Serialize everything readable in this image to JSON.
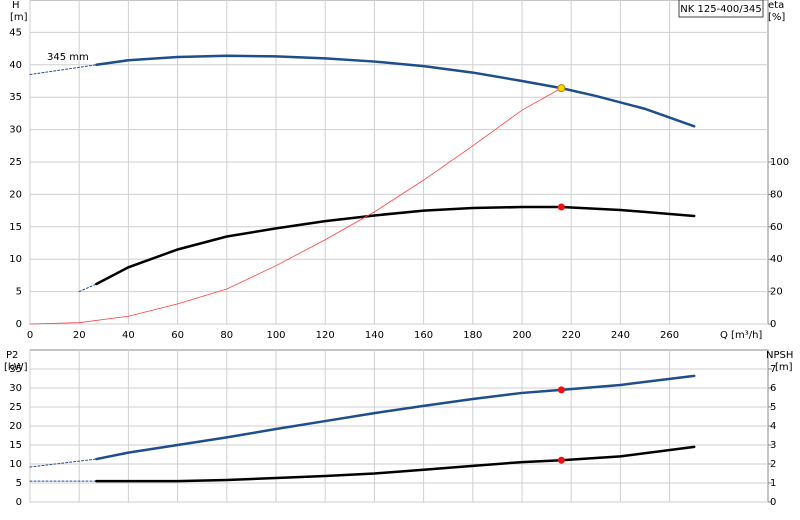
{
  "chart_data": [
    {
      "type": "line",
      "title": "NK 125-400/345",
      "ylabel": "H",
      "yunit": "[m]",
      "y2label": "eta",
      "y2unit": "[%]",
      "xlabel": "Q [m³/h]",
      "annotations": [
        "345 mm"
      ],
      "xlim": [
        0,
        300
      ],
      "xticks": [
        0,
        20,
        40,
        60,
        80,
        100,
        120,
        140,
        160,
        180,
        200,
        220,
        240,
        260
      ],
      "xtick_labels": true,
      "ylim": [
        0,
        50
      ],
      "yticks": [
        0,
        5,
        10,
        15,
        20,
        25,
        30,
        35,
        40,
        45
      ],
      "y2lim": [
        0,
        200
      ],
      "y2ticks": [
        0,
        20,
        40,
        60,
        80,
        100
      ],
      "grid": true,
      "series": [
        {
          "x": [
            0,
            27
          ],
          "values": [
            38.5,
            40
          ],
          "color": "#1f4e8c",
          "axis": "y",
          "dashed": true,
          "linewidth": 1
        },
        {
          "x": [
            27,
            40,
            60,
            80,
            100,
            120,
            140,
            160,
            180,
            200,
            216,
            230,
            250,
            270
          ],
          "values": [
            40,
            40.7,
            41.2,
            41.4,
            41.3,
            41,
            40.5,
            39.8,
            38.8,
            37.5,
            36.4,
            35.2,
            33.2,
            30.5
          ],
          "color": "#1f4e8c",
          "axis": "y",
          "dashed": false,
          "linewidth": 2.5
        },
        {
          "x": [
            20,
            27
          ],
          "values": [
            20,
            24.7
          ],
          "color": "#1f4e8c",
          "axis": "y2",
          "dashed": true,
          "linewidth": 1
        },
        {
          "x": [
            27,
            40,
            60,
            80,
            100,
            120,
            140,
            160,
            180,
            200,
            216,
            240,
            270
          ],
          "values": [
            24.7,
            35,
            46,
            54,
            59,
            63.5,
            67,
            70,
            71.6,
            72.2,
            72.2,
            70.4,
            66.7
          ],
          "color": "#000000",
          "axis": "y2",
          "dashed": false,
          "linewidth": 2.5
        },
        {
          "x": [
            0,
            20,
            40,
            60,
            80,
            100,
            120,
            140,
            160,
            180,
            200,
            216
          ],
          "values": [
            0,
            0.2,
            1.2,
            3.1,
            5.4,
            9,
            13,
            17.3,
            22.2,
            27.5,
            33,
            36.4
          ],
          "color": "#ff4040",
          "axis": "y",
          "dashed": false,
          "linewidth": 0.8
        }
      ],
      "markers": [
        {
          "x": 216,
          "value": 36.4,
          "color": "#ffd700",
          "axis": "y"
        },
        {
          "x": 216,
          "value": 72.2,
          "color": "#ee1111",
          "axis": "y2"
        }
      ]
    },
    {
      "type": "line",
      "ylabel": "P2",
      "yunit": "[kW]",
      "y2label": "NPSH",
      "y2unit": "[m]",
      "xlim": [
        0,
        300
      ],
      "xticks": [
        0,
        20,
        40,
        60,
        80,
        100,
        120,
        140,
        160,
        180,
        200,
        220,
        240,
        260
      ],
      "xtick_labels": false,
      "ylim": [
        0,
        40
      ],
      "yticks": [
        0,
        5,
        10,
        15,
        20,
        25,
        30,
        35
      ],
      "y2lim": [
        0,
        8
      ],
      "y2ticks": [
        0,
        1,
        2,
        3,
        4,
        5,
        6,
        7
      ],
      "grid": true,
      "series": [
        {
          "x": [
            0,
            27
          ],
          "values": [
            9.2,
            11.3
          ],
          "color": "#1f4e8c",
          "axis": "y",
          "dashed": true,
          "linewidth": 1
        },
        {
          "x": [
            27,
            40,
            60,
            80,
            100,
            120,
            140,
            160,
            180,
            200,
            216,
            240,
            270
          ],
          "values": [
            11.3,
            13,
            15,
            17,
            19.2,
            21.3,
            23.4,
            25.3,
            27.1,
            28.7,
            29.5,
            30.8,
            33.2
          ],
          "color": "#1f4e8c",
          "axis": "y",
          "dashed": false,
          "linewidth": 2.5
        },
        {
          "x": [
            0,
            27
          ],
          "values": [
            1.1,
            1.1
          ],
          "color": "#1f4e8c",
          "axis": "y2",
          "dashed": true,
          "linewidth": 1
        },
        {
          "x": [
            27,
            60,
            80,
            100,
            120,
            140,
            160,
            180,
            200,
            216,
            240,
            270
          ],
          "values": [
            1.1,
            1.1,
            1.16,
            1.26,
            1.37,
            1.5,
            1.7,
            1.9,
            2.1,
            2.2,
            2.4,
            2.9
          ],
          "color": "#000000",
          "axis": "y2",
          "dashed": false,
          "linewidth": 2.5
        }
      ],
      "markers": [
        {
          "x": 216,
          "value": 29.5,
          "color": "#ee1111",
          "axis": "y"
        },
        {
          "x": 216,
          "value": 2.2,
          "color": "#ee1111",
          "axis": "y2"
        }
      ]
    }
  ]
}
